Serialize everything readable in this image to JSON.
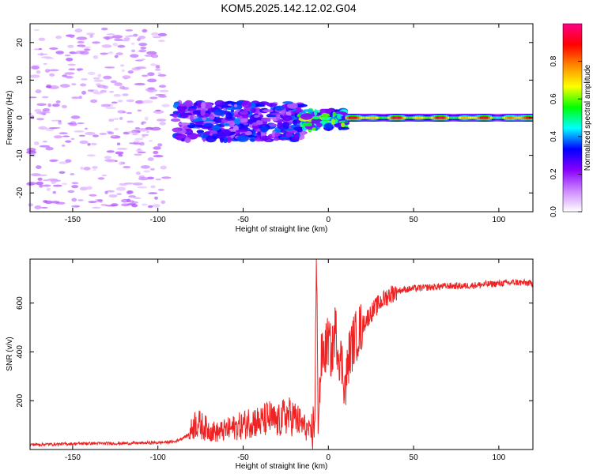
{
  "page": {
    "title": "KOM5.2025.142.12.02.G04"
  },
  "chart_data": [
    {
      "type": "heatmap",
      "xlabel": "Height of straight line (km)",
      "ylabel": "Frequency (Hz)",
      "xlim": [
        -175,
        120
      ],
      "ylim": [
        -25,
        25
      ],
      "xticks": [
        -150,
        -100,
        -50,
        0,
        50,
        100
      ],
      "yticks": [
        -20,
        -10,
        0,
        10,
        20
      ],
      "colorbar": {
        "label": "Normalized spectral amplitude",
        "range": [
          0,
          1
        ],
        "ticks": [
          0.0,
          0.2,
          0.4,
          0.6,
          0.8
        ],
        "tick_labels": [
          "0.0",
          "0.2",
          "0.4",
          "0.6",
          "0.8"
        ],
        "colors": [
          "#ffffff",
          "#cc88ff",
          "#8800ff",
          "#0000ff",
          "#00ffff",
          "#00ff00",
          "#ffff00",
          "#ff8800",
          "#ff0000",
          "#ff0088"
        ]
      },
      "features": [
        {
          "name": "noise",
          "x_range": [
            -175,
            -95
          ],
          "y_range": [
            -24,
            24
          ],
          "amplitude": 0.1
        },
        {
          "name": "onset-cluster",
          "x_range": [
            -90,
            -15
          ],
          "y_range": [
            -6,
            4
          ],
          "amplitude": 0.3
        },
        {
          "name": "pre-main",
          "x_range": [
            -15,
            10
          ],
          "y_range": [
            -3,
            2
          ],
          "amplitude": 0.5
        },
        {
          "name": "main-line",
          "x_range": [
            10,
            120
          ],
          "y_range": [
            -1,
            1
          ],
          "amplitude": 0.9
        }
      ]
    },
    {
      "type": "line",
      "xlabel": "Height of straight line (km)",
      "ylabel": "SNR (v/v)",
      "xlim": [
        -175,
        120
      ],
      "ylim": [
        0,
        780
      ],
      "xticks": [
        -150,
        -100,
        -50,
        0,
        50,
        100
      ],
      "yticks": [
        200,
        400,
        600
      ],
      "color": "#ee2222",
      "series": [
        {
          "x": [
            -175,
            -160,
            -140,
            -120,
            -100,
            -90,
            -82,
            -78,
            -75,
            -70,
            -65,
            -60,
            -55,
            -50,
            -45,
            -40,
            -35,
            -30,
            -25,
            -20,
            -15,
            -12,
            -10,
            -8,
            -7,
            -6,
            -5,
            -4,
            -2,
            0,
            2,
            4,
            6,
            8,
            10,
            12,
            15,
            20,
            25,
            30,
            35,
            40,
            50,
            60,
            70,
            80,
            90,
            100,
            110,
            120
          ],
          "y": [
            20,
            22,
            25,
            25,
            28,
            32,
            60,
            110,
            100,
            80,
            70,
            80,
            90,
            100,
            120,
            110,
            130,
            110,
            140,
            130,
            100,
            80,
            60,
            120,
            770,
            150,
            250,
            380,
            400,
            450,
            380,
            500,
            400,
            350,
            250,
            380,
            450,
            510,
            560,
            600,
            630,
            650,
            660,
            665,
            670,
            670,
            675,
            680,
            685,
            680
          ]
        }
      ]
    }
  ]
}
